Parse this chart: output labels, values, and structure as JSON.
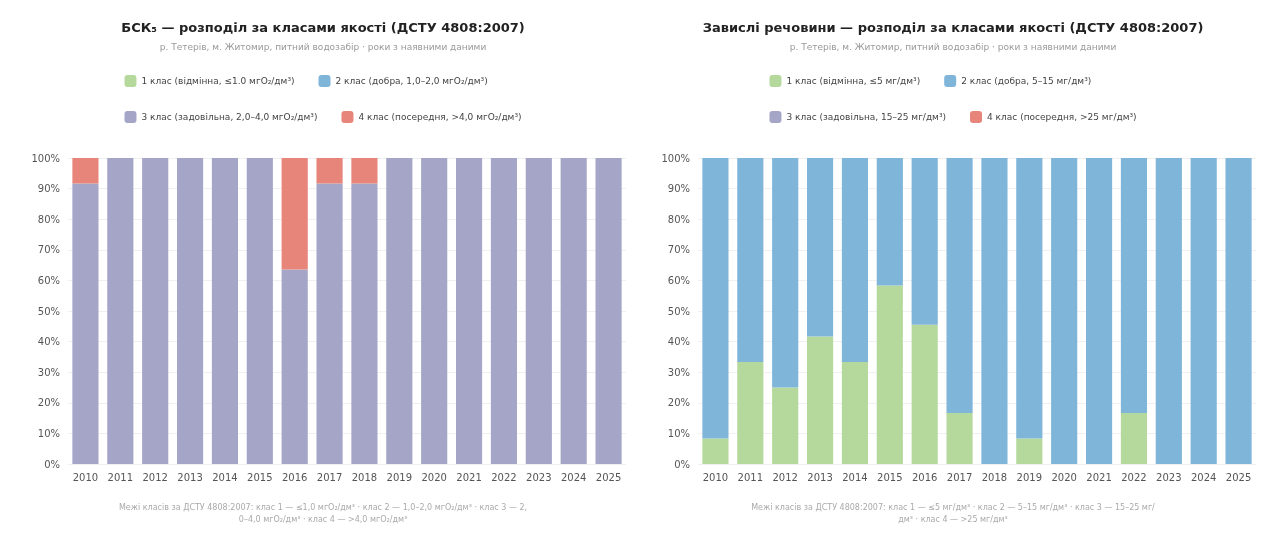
{
  "chart_data": [
    {
      "type": "bar",
      "title": "БСК₅ — розподіл за класами якості (ДСТУ 4808:2007)",
      "subtitle": "р. Тетерів, м. Житомир, питний водозабір · роки з наявними даними",
      "annotations": [
        "Межі класів за ДСТУ 4808:2007: клас 1 — ≤1,0 мгО₂/дм³ · клас 2 — 1,0–2,0 мгО₂/дм³ · клас 3 — 2,0–4,0 мгО₂/дм³ · клас 4 — >4,0 мгО₂/дм³"
      ],
      "stacked": true,
      "legend": "top",
      "grid": "y",
      "categories": [
        "2010",
        "2011",
        "2012",
        "2013",
        "2014",
        "2015",
        "2016",
        "2017",
        "2018",
        "2019",
        "2020",
        "2021",
        "2022",
        "2023",
        "2024",
        "2025"
      ],
      "ylim": [
        0,
        100
      ],
      "yticks": [
        {
          "value": 0,
          "label": "0%"
        },
        {
          "value": 10,
          "label": "10%"
        },
        {
          "value": 20,
          "label": "20%"
        },
        {
          "value": 30,
          "label": "30%"
        },
        {
          "value": 40,
          "label": "40%"
        },
        {
          "value": 50,
          "label": "50%"
        },
        {
          "value": 60,
          "label": "60%"
        },
        {
          "value": 70,
          "label": "70%"
        },
        {
          "value": 80,
          "label": "80%"
        },
        {
          "value": 90,
          "label": "90%"
        },
        {
          "value": 100,
          "label": "100%"
        }
      ],
      "series": [
        {
          "name": "1 клас (відмінна, ≤1.0 мгО₂/дм³)",
          "color": "#b5d99c",
          "values": [
            0,
            0,
            0,
            0,
            0,
            0,
            0,
            0,
            0,
            0,
            0,
            0,
            0,
            0,
            0,
            0
          ]
        },
        {
          "name": "2 клас (добра, 1,0–2,0 мгО₂/дм³)",
          "color": "#7fb5d9",
          "values": [
            0,
            0,
            0,
            0,
            0,
            0,
            0,
            0,
            0,
            0,
            0,
            0,
            0,
            0,
            0,
            0
          ]
        },
        {
          "name": "3 клас (задовільна, 2,0–4,0 мгО₂/дм³)",
          "color": "#a5a5c8",
          "values": [
            91.7,
            100,
            100,
            100,
            100,
            100,
            63.6,
            91.7,
            91.7,
            100,
            100,
            100,
            100,
            100,
            100,
            100
          ]
        },
        {
          "name": "4 клас (посередня, >4,0 мгО₂/дм³)",
          "color": "#e8857a",
          "values": [
            8.3,
            0,
            0,
            0,
            0,
            0,
            36.4,
            8.3,
            8.3,
            0,
            0,
            0,
            0,
            0,
            0,
            0
          ]
        }
      ]
    },
    {
      "type": "bar",
      "title": "Завислі речовини — розподіл за класами якості (ДСТУ 4808:2007)",
      "subtitle": "р. Тетерів, м. Житомир, питний водозабір · роки з наявними даними",
      "annotations": [
        "Межі класів за ДСТУ 4808:2007: клас 1 — ≤5 мг/дм³ · клас 2 — 5–15 мг/дм³ · клас 3 — 15–25 мг/дм³ · клас 4 — >25 мг/дм³"
      ],
      "stacked": true,
      "legend": "top",
      "grid": "y",
      "categories": [
        "2010",
        "2011",
        "2012",
        "2013",
        "2014",
        "2015",
        "2016",
        "2017",
        "2018",
        "2019",
        "2020",
        "2021",
        "2022",
        "2023",
        "2024",
        "2025"
      ],
      "ylim": [
        0,
        100
      ],
      "yticks": [
        {
          "value": 0,
          "label": "0%"
        },
        {
          "value": 10,
          "label": "10%"
        },
        {
          "value": 20,
          "label": "20%"
        },
        {
          "value": 30,
          "label": "30%"
        },
        {
          "value": 40,
          "label": "40%"
        },
        {
          "value": 50,
          "label": "50%"
        },
        {
          "value": 60,
          "label": "60%"
        },
        {
          "value": 70,
          "label": "70%"
        },
        {
          "value": 80,
          "label": "80%"
        },
        {
          "value": 90,
          "label": "90%"
        },
        {
          "value": 100,
          "label": "100%"
        }
      ],
      "series": [
        {
          "name": "1 клас (відмінна, ≤5 мг/дм³)",
          "color": "#b5d99c",
          "values": [
            8.3,
            33.3,
            25,
            41.7,
            33.3,
            58.3,
            45.5,
            16.7,
            0,
            8.3,
            0,
            0,
            16.7,
            0,
            0,
            0
          ]
        },
        {
          "name": "2 клас (добра, 5–15 мг/дм³)",
          "color": "#7fb5d9",
          "values": [
            91.7,
            66.7,
            75,
            58.3,
            66.7,
            41.7,
            54.5,
            83.3,
            100,
            91.7,
            100,
            100,
            83.3,
            100,
            100,
            100
          ]
        },
        {
          "name": "3 клас (задовільна, 15–25 мг/дм³)",
          "color": "#a5a5c8",
          "values": [
            0,
            0,
            0,
            0,
            0,
            0,
            0,
            0,
            0,
            0,
            0,
            0,
            0,
            0,
            0,
            0
          ]
        },
        {
          "name": "4 клас (посередня, >25 мг/дм³)",
          "color": "#e8857a",
          "values": [
            0,
            0,
            0,
            0,
            0,
            0,
            0,
            0,
            0,
            0,
            0,
            0,
            0,
            0,
            0,
            0
          ]
        }
      ]
    }
  ]
}
